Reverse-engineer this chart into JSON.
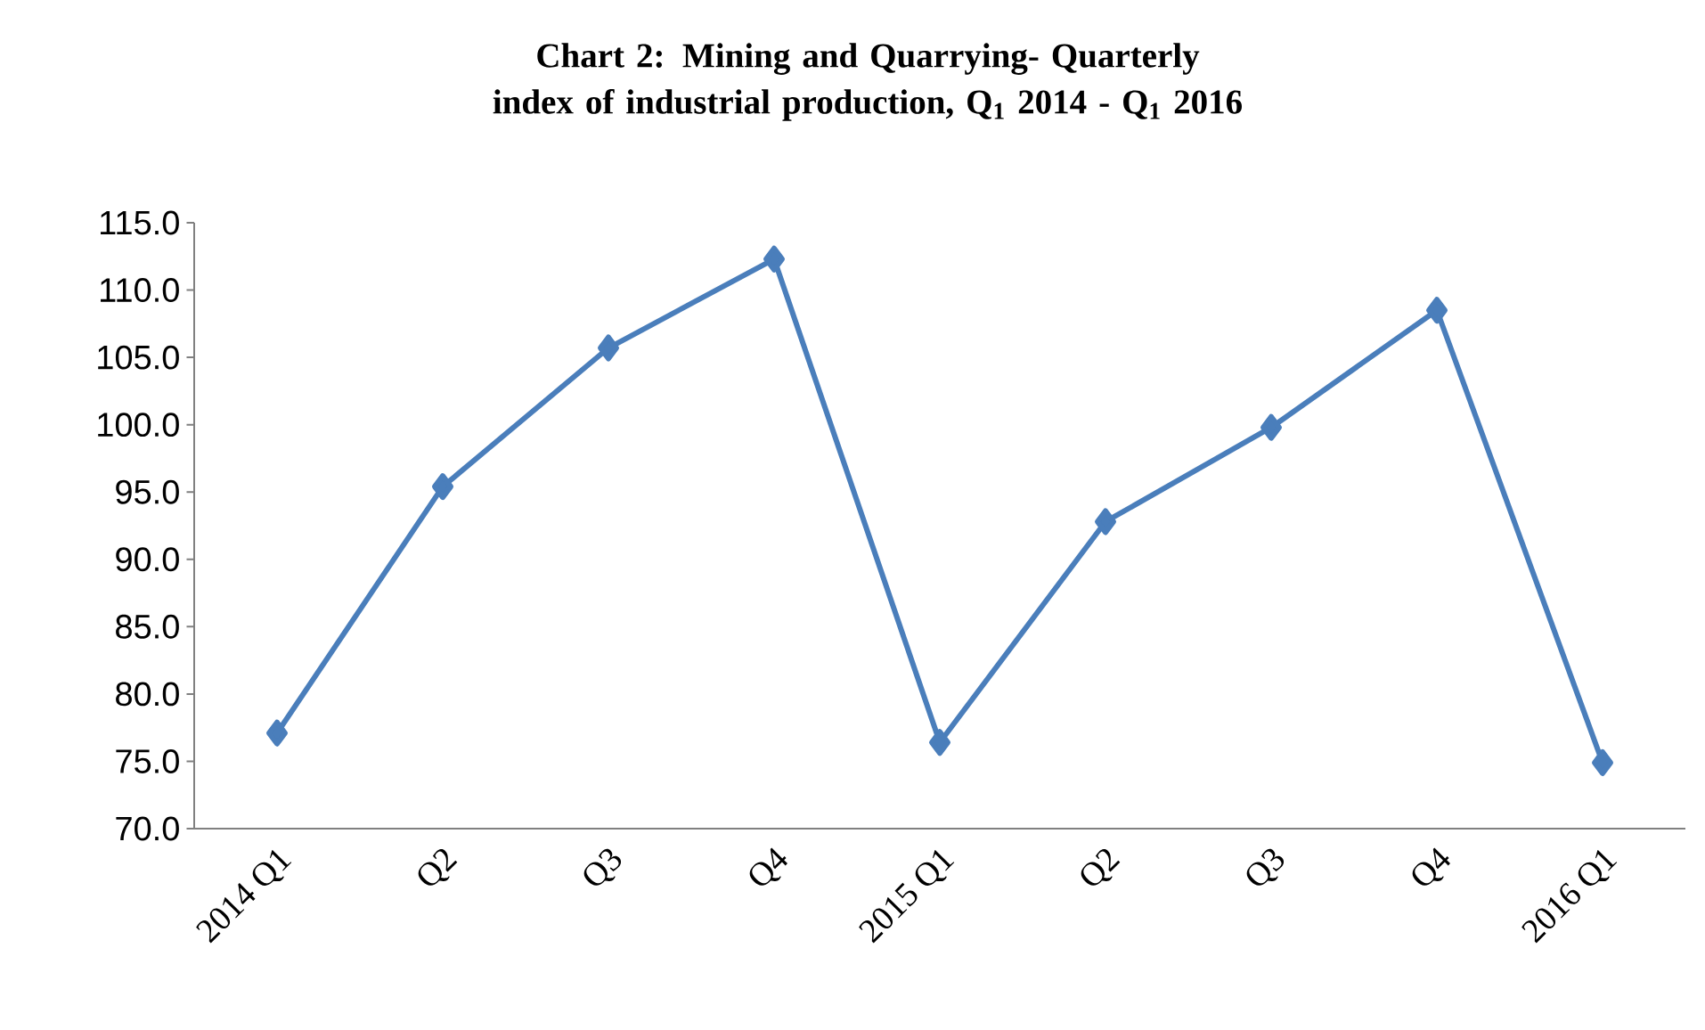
{
  "chart_data": {
    "type": "line",
    "title": "Chart 2: Mining and Quarrying- Quarterly index of industrial production, Q$_{1}$ 2014 - Q$_{1}$ 2016",
    "categories": [
      "2014 Q1",
      "Q2",
      "Q3",
      "Q4",
      "2015 Q1",
      "Q2",
      "Q3",
      "Q4",
      "2016 Q1"
    ],
    "series": [
      {
        "color": "#4a7ebb",
        "values": [
          77.1,
          95.4,
          105.7,
          112.3,
          76.4,
          92.8,
          99.8,
          108.5,
          74.9
        ]
      }
    ],
    "ylim": [
      70,
      115
    ],
    "yticks": [
      {
        "value": 70,
        "label": "70.0"
      },
      {
        "value": 75,
        "label": "75.0"
      },
      {
        "value": 80,
        "label": "80.0"
      },
      {
        "value": 85,
        "label": "85.0"
      },
      {
        "value": 90,
        "label": "90.0"
      },
      {
        "value": 95,
        "label": "95.0"
      },
      {
        "value": 100,
        "label": "100.0"
      },
      {
        "value": 105,
        "label": "105.0"
      },
      {
        "value": 110,
        "label": "110.0"
      },
      {
        "value": 115,
        "label": "115.0"
      }
    ],
    "marker": "diamond",
    "line_style": "solid",
    "grid": false
  }
}
